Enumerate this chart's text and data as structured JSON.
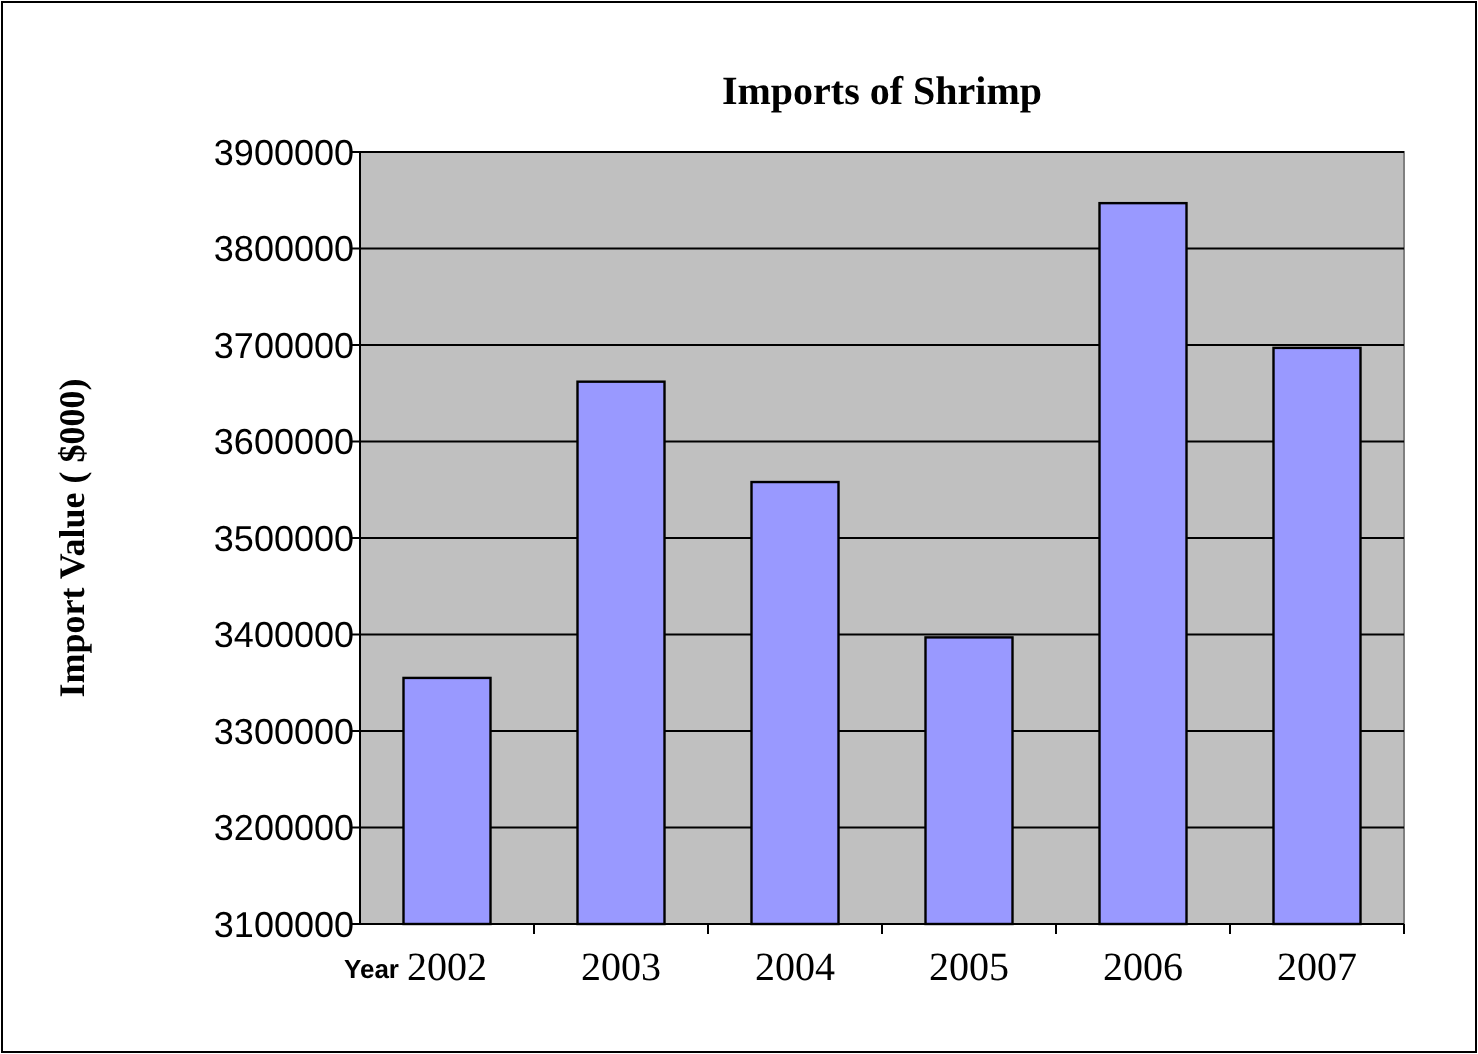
{
  "chart_data": {
    "type": "bar",
    "title": "Imports of Shrimp",
    "xlabel": "Year",
    "ylabel": "Import Value ( $000)",
    "categories": [
      "2002",
      "2003",
      "2004",
      "2005",
      "2006",
      "2007"
    ],
    "values": [
      3355000,
      3662000,
      3558000,
      3397000,
      3847000,
      3697000
    ],
    "color": "#9999ff",
    "ylim": [
      3100000,
      3900000
    ],
    "yticks": [
      3100000,
      3200000,
      3300000,
      3400000,
      3500000,
      3600000,
      3700000,
      3800000,
      3900000
    ],
    "grid": "y"
  }
}
